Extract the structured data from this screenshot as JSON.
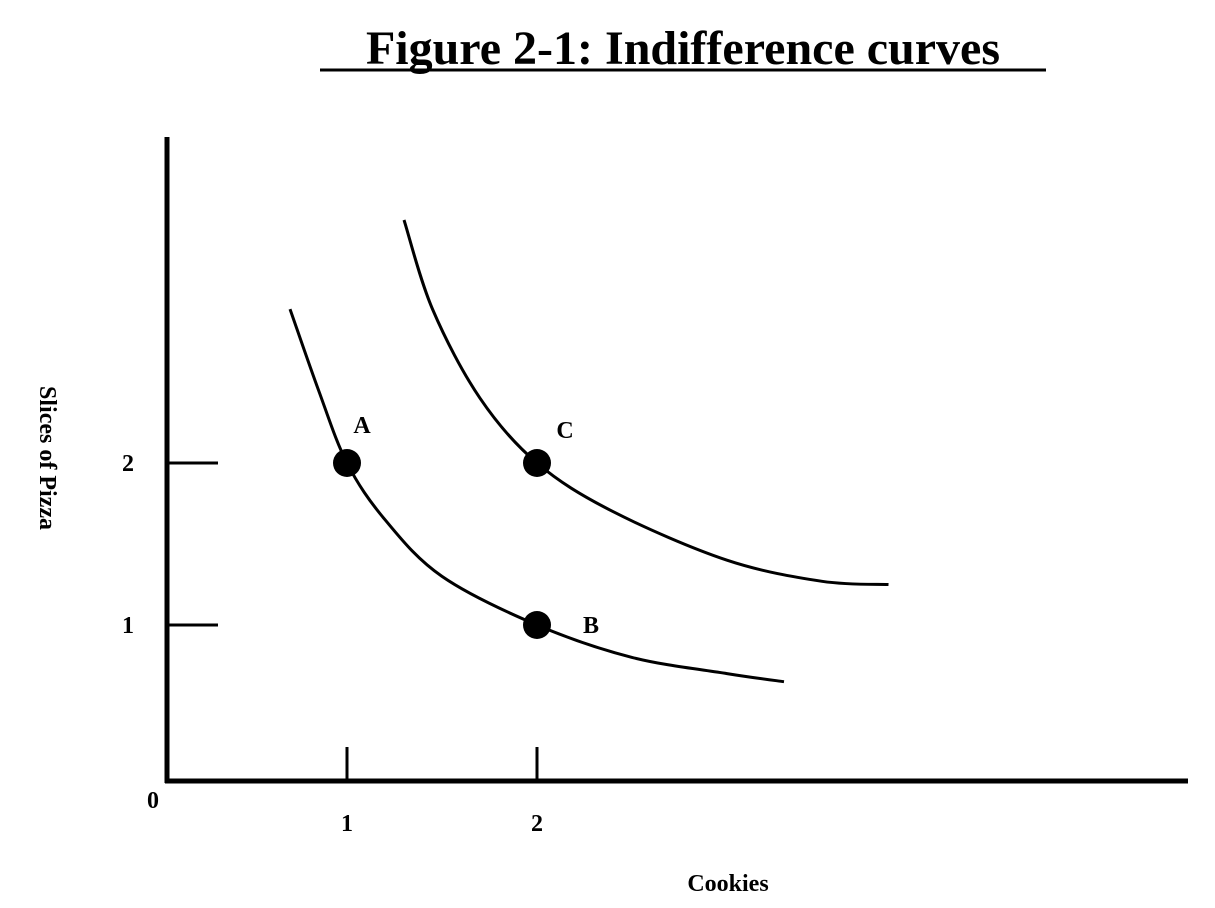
{
  "chart_data": {
    "type": "line",
    "title": "Figure 2-1: Indifference curves",
    "xlabel": "Cookies",
    "ylabel": "Slices of Pizza",
    "origin_label": "0",
    "x_ticks": [
      1,
      2
    ],
    "y_ticks": [
      1,
      2
    ],
    "xlim": [
      0,
      5.35
    ],
    "ylim": [
      0,
      4.0
    ],
    "grid": false,
    "legend": "none",
    "line_color": "#000000",
    "series": [
      {
        "x": [
          0.7,
          0.85,
          1.0,
          1.2,
          1.5,
          2.0,
          2.5,
          3.0,
          3.3
        ],
        "y": [
          2.95,
          2.45,
          2.0,
          1.65,
          1.3,
          1.0,
          0.8,
          0.7,
          0.65
        ]
      },
      {
        "x": [
          1.3,
          1.45,
          1.7,
          2.0,
          2.4,
          3.0,
          3.5,
          3.85
        ],
        "y": [
          3.5,
          2.95,
          2.4,
          2.0,
          1.7,
          1.4,
          1.27,
          1.25
        ]
      }
    ],
    "points": [
      {
        "label": "A",
        "x": 1,
        "y": 2
      },
      {
        "label": "B",
        "x": 2,
        "y": 1
      },
      {
        "label": "C",
        "x": 2,
        "y": 2
      }
    ]
  }
}
